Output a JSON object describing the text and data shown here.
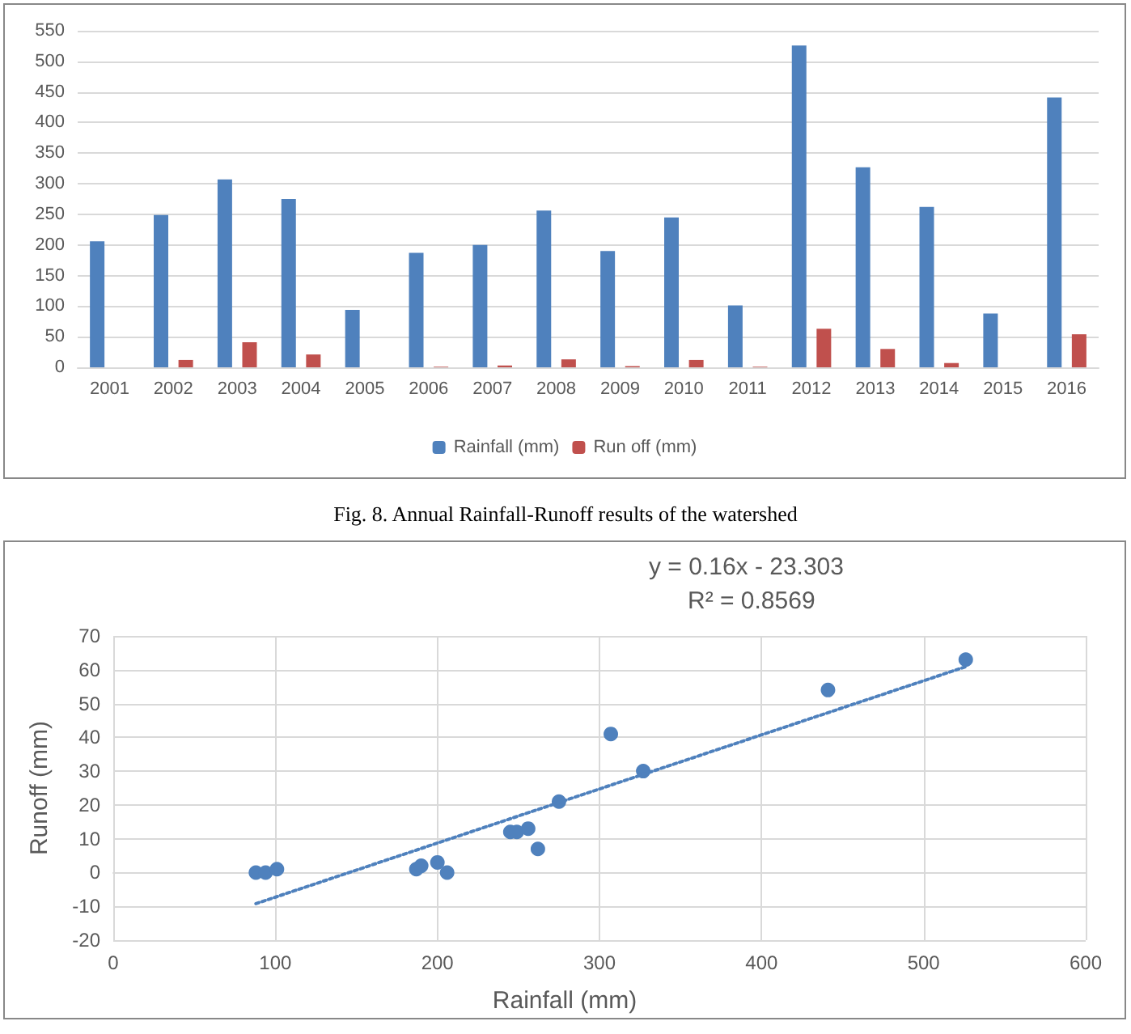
{
  "chart_data": [
    {
      "type": "bar",
      "categories": [
        "2001",
        "2002",
        "2003",
        "2004",
        "2005",
        "2006",
        "2007",
        "2008",
        "2009",
        "2010",
        "2011",
        "2012",
        "2013",
        "2014",
        "2015",
        "2016"
      ],
      "series": [
        {
          "name": "Rainfall (mm)",
          "color": "#4f81bd",
          "values": [
            206,
            249,
            307,
            275,
            94,
            187,
            200,
            256,
            190,
            245,
            101,
            526,
            327,
            262,
            88,
            441
          ]
        },
        {
          "name": "Run off (mm)",
          "color": "#c0504d",
          "values": [
            0,
            12,
            41,
            21,
            0,
            1,
            3,
            13,
            2,
            12,
            1,
            63,
            30,
            7,
            0,
            54
          ]
        }
      ],
      "ylim": [
        0,
        550
      ],
      "yticks": [
        0,
        50,
        100,
        150,
        200,
        250,
        300,
        350,
        400,
        450,
        500,
        550
      ],
      "grid": "y",
      "legend": "bottom",
      "annotations": [
        "Fig. 8. Annual Rainfall-Runoff results of the watershed"
      ]
    },
    {
      "type": "scatter",
      "xlabel": "Rainfall (mm)",
      "ylabel": "Runoff (mm)",
      "series": [
        {
          "color": "#4f81bd",
          "x": [
            88,
            94,
            101,
            187,
            190,
            200,
            206,
            245,
            249,
            256,
            262,
            275,
            307,
            327,
            441,
            526
          ],
          "values": [
            0,
            0,
            1,
            1,
            2,
            3,
            0,
            12,
            12,
            13,
            7,
            21,
            41,
            30,
            54,
            63
          ]
        },
        {
          "type": "line",
          "color": "#4f81bd",
          "x": [
            88,
            526
          ],
          "values": [
            -9.2,
            60.9
          ],
          "line_style": "dotted",
          "marker": "none"
        }
      ],
      "xlim": [
        0,
        600
      ],
      "xticks": [
        0,
        100,
        200,
        300,
        400,
        500,
        600
      ],
      "ylim": [
        -20,
        70
      ],
      "yticks": [
        -20,
        -10,
        0,
        10,
        20,
        30,
        40,
        50,
        60,
        70
      ],
      "grid": true,
      "marker": "circle",
      "legend": false,
      "annotations": [
        "y = 0.16x - 23.303",
        "R² = 0.8569"
      ]
    }
  ]
}
